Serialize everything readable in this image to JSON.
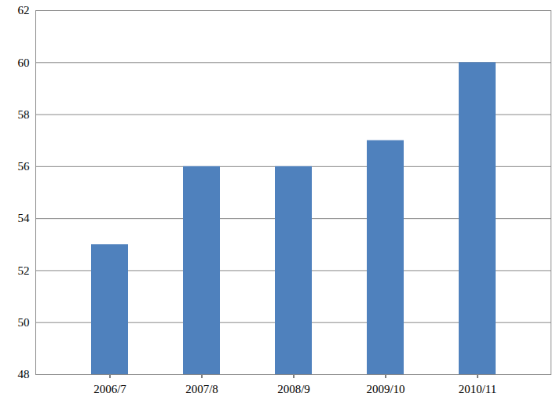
{
  "chart_data": {
    "type": "bar",
    "categories": [
      "2006/7",
      "2007/8",
      "2008/9",
      "2009/10",
      "2010/11"
    ],
    "values": [
      53,
      56,
      56,
      57,
      60
    ],
    "color": "#4f81bd",
    "ylim": [
      48,
      62
    ],
    "yticks": [
      48,
      50,
      52,
      54,
      56,
      58,
      60,
      62
    ],
    "grid": true
  }
}
